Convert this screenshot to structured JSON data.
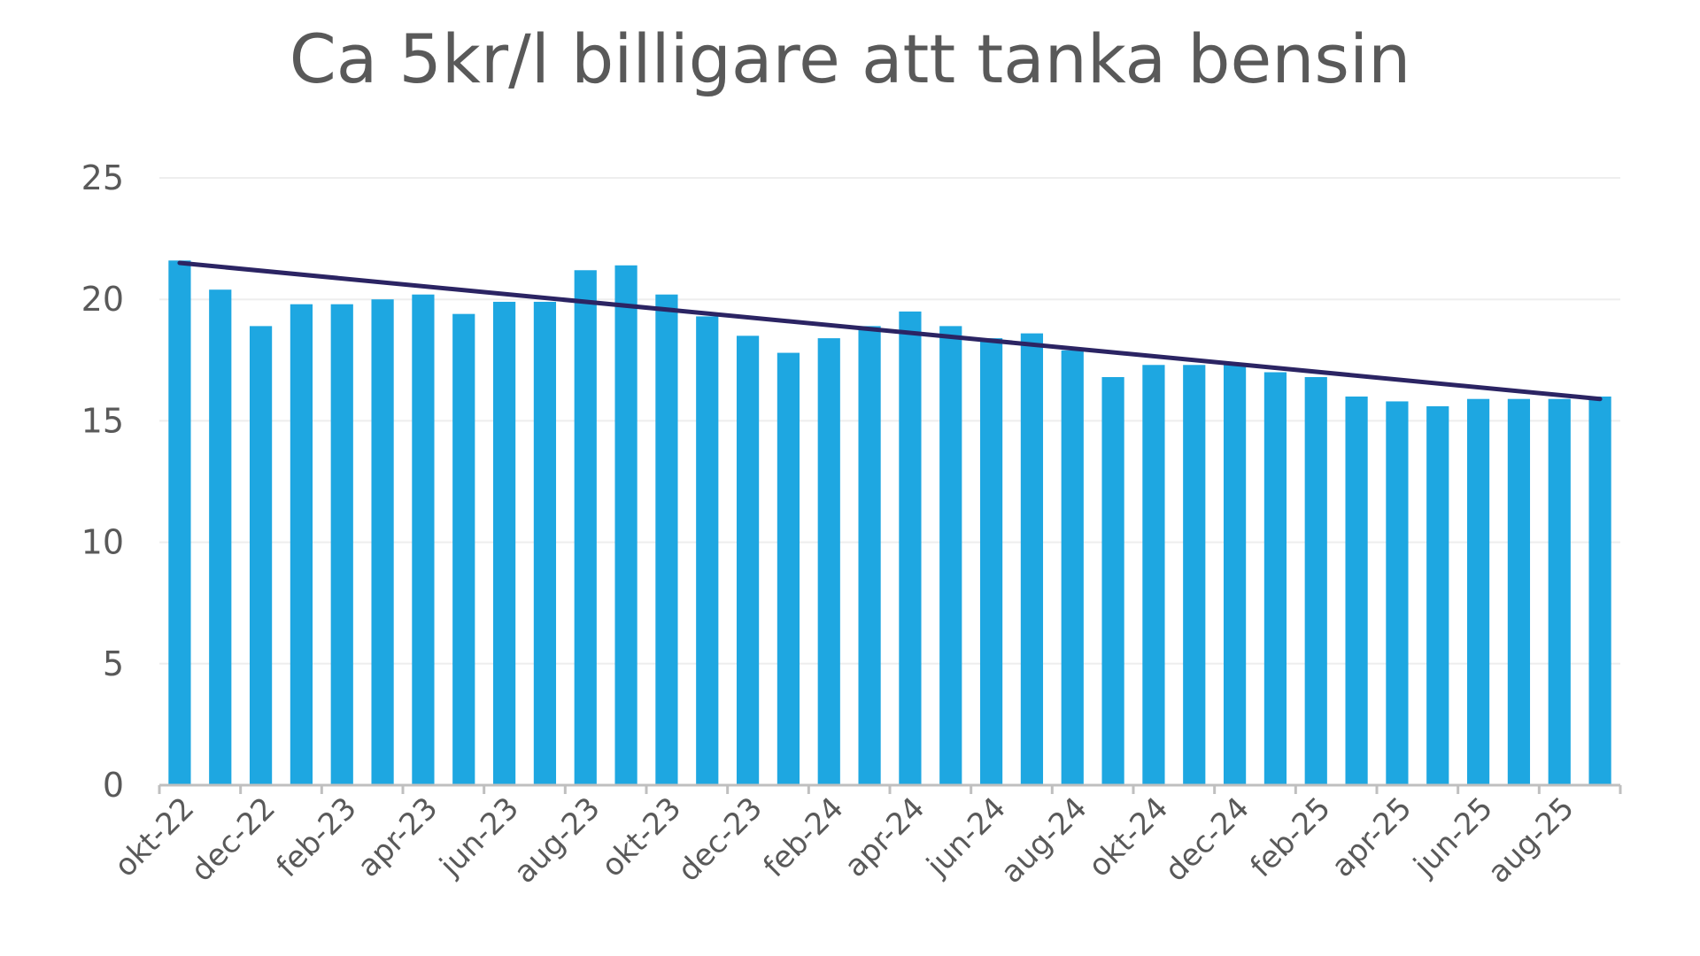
{
  "chart_data": {
    "type": "bar",
    "title": "Ca 5kr/l billigare att tanka bensin",
    "xlabel": "",
    "ylabel": "",
    "ylim": [
      0,
      25
    ],
    "yticks": [
      0,
      5,
      10,
      15,
      20,
      25
    ],
    "grid": true,
    "legend": "none",
    "categories": [
      "okt-22",
      "nov-22",
      "dec-22",
      "jan-23",
      "feb-23",
      "mar-23",
      "apr-23",
      "maj-23",
      "jun-23",
      "jul-23",
      "aug-23",
      "sep-23",
      "okt-23",
      "nov-23",
      "dec-23",
      "jan-24",
      "feb-24",
      "mar-24",
      "apr-24",
      "maj-24",
      "jun-24",
      "jul-24",
      "aug-24",
      "sep-24",
      "okt-24",
      "nov-24",
      "dec-24",
      "jan-25",
      "feb-25",
      "mar-25",
      "apr-25",
      "maj-25",
      "jun-25",
      "jul-25",
      "aug-25",
      "sep-25"
    ],
    "category_labels_shown": [
      "okt-22",
      "dec-22",
      "feb-23",
      "apr-23",
      "jun-23",
      "aug-23",
      "okt-23",
      "dec-23",
      "feb-24",
      "apr-24",
      "jun-24",
      "aug-24",
      "okt-24",
      "dec-24",
      "feb-25",
      "apr-25",
      "jun-25",
      "aug-25"
    ],
    "values": [
      21.6,
      20.4,
      18.9,
      19.8,
      19.8,
      20.0,
      20.2,
      19.4,
      19.9,
      19.9,
      21.2,
      21.4,
      20.2,
      19.3,
      18.5,
      17.8,
      18.4,
      18.9,
      19.5,
      18.9,
      18.4,
      18.6,
      17.9,
      16.8,
      17.3,
      17.3,
      17.3,
      17.0,
      16.8,
      16.0,
      15.8,
      15.6,
      15.9,
      15.9,
      15.9,
      16.0
    ],
    "trendline": {
      "type": "linear",
      "start": 21.5,
      "end": 15.9
    },
    "colors": {
      "bar": "#1ea7e1",
      "trend": "#2b2463",
      "grid": "#eeeeee",
      "axis": "#bfbfbf",
      "text": "#595959"
    }
  }
}
